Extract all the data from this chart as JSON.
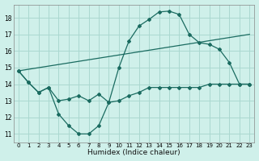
{
  "xlabel": "Humidex (Indice chaleur)",
  "bg_color": "#cff0ea",
  "grid_color": "#aad8d0",
  "line_color": "#1a6b60",
  "xlim": [
    -0.5,
    23.5
  ],
  "ylim": [
    10.5,
    18.8
  ],
  "xticks": [
    0,
    1,
    2,
    3,
    4,
    5,
    6,
    7,
    8,
    9,
    10,
    11,
    12,
    13,
    14,
    15,
    16,
    17,
    18,
    19,
    20,
    21,
    22,
    23
  ],
  "yticks": [
    11,
    12,
    13,
    14,
    15,
    16,
    17,
    18
  ],
  "curve1_x": [
    0,
    1,
    2,
    3,
    4,
    5,
    6,
    7,
    8,
    9,
    10,
    11,
    12,
    13,
    14,
    15,
    16,
    17,
    18,
    19,
    20,
    21,
    22,
    23
  ],
  "curve1_y": [
    14.8,
    14.1,
    13.5,
    13.8,
    12.2,
    11.5,
    11.0,
    11.0,
    11.5,
    12.9,
    15.0,
    16.6,
    17.5,
    17.9,
    18.35,
    18.4,
    18.2,
    17.0,
    16.5,
    16.4,
    16.1,
    15.3,
    14.0,
    14.0
  ],
  "curve2_x": [
    0,
    1,
    2,
    3,
    4,
    5,
    6,
    7,
    8,
    9,
    10,
    11,
    12,
    13,
    14,
    15,
    16,
    17,
    18,
    19,
    20,
    21,
    22,
    23
  ],
  "curve2_y": [
    14.8,
    14.1,
    13.5,
    13.8,
    13.0,
    13.1,
    13.3,
    13.0,
    13.4,
    12.9,
    13.0,
    13.3,
    13.5,
    13.8,
    13.8,
    13.8,
    13.8,
    13.8,
    13.8,
    14.0,
    14.0,
    14.0,
    14.0,
    14.0
  ],
  "curve3_x": [
    0,
    23
  ],
  "curve3_y": [
    14.8,
    17.0
  ]
}
